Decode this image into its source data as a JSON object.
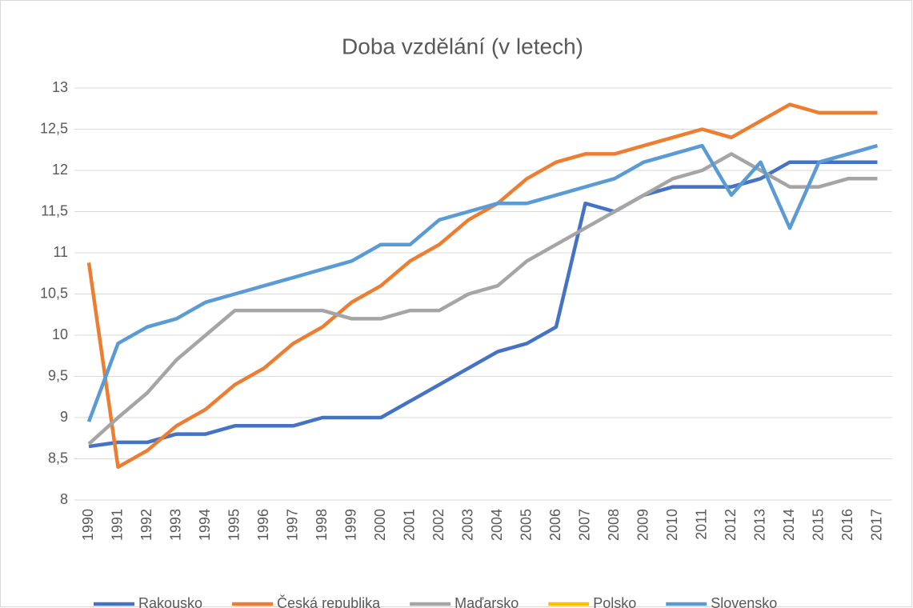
{
  "chart_data": {
    "type": "line",
    "title": "Doba vzdělání (v letech)",
    "categories": [
      "1990",
      "1991",
      "1992",
      "1993",
      "1994",
      "1995",
      "1996",
      "1997",
      "1998",
      "1999",
      "2000",
      "2001",
      "2002",
      "2003",
      "2004",
      "2005",
      "2006",
      "2007",
      "2008",
      "2009",
      "2010",
      "2011",
      "2012",
      "2013",
      "2014",
      "2015",
      "2016",
      "2017"
    ],
    "series": [
      {
        "name": "Rakousko",
        "color": "#4472c4",
        "values": [
          8.65,
          8.7,
          8.7,
          8.8,
          8.8,
          8.9,
          8.9,
          8.9,
          9.0,
          9.0,
          9.0,
          9.2,
          9.4,
          9.6,
          9.8,
          9.9,
          10.1,
          11.6,
          11.5,
          11.7,
          11.8,
          11.8,
          11.8,
          11.9,
          12.1,
          12.1,
          12.1,
          12.1
        ]
      },
      {
        "name": "Česká republika",
        "color": "#ed7d31",
        "values": [
          10.88,
          8.4,
          8.6,
          8.9,
          9.1,
          9.4,
          9.6,
          9.9,
          10.1,
          10.4,
          10.6,
          10.9,
          11.1,
          11.4,
          11.6,
          11.9,
          12.1,
          12.2,
          12.2,
          12.3,
          12.4,
          12.5,
          12.4,
          12.6,
          12.8,
          12.7,
          12.7,
          12.7
        ]
      },
      {
        "name": "Maďarsko",
        "color": "#a5a5a5",
        "values": [
          8.68,
          9.0,
          9.3,
          9.7,
          10.0,
          10.3,
          10.3,
          10.3,
          10.3,
          10.2,
          10.2,
          10.3,
          10.3,
          10.5,
          10.6,
          10.9,
          11.1,
          11.3,
          11.5,
          11.7,
          11.9,
          12.0,
          12.2,
          12.0,
          11.8,
          11.8,
          11.9,
          11.9
        ]
      },
      {
        "name": "Polsko",
        "color": "#ffc000",
        "values": [
          null,
          null,
          null,
          null,
          null,
          null,
          null,
          null,
          null,
          null,
          null,
          null,
          null,
          null,
          null,
          null,
          null,
          null,
          null,
          null,
          null,
          null,
          null,
          null,
          null,
          null,
          null,
          null
        ]
      },
      {
        "name": "Slovensko",
        "color": "#5b9bd5",
        "values": [
          8.95,
          9.9,
          10.1,
          10.2,
          10.4,
          10.5,
          10.6,
          10.7,
          10.8,
          10.9,
          11.1,
          11.1,
          11.4,
          11.5,
          11.6,
          11.6,
          11.7,
          11.8,
          11.9,
          12.1,
          12.2,
          12.3,
          11.7,
          12.1,
          11.3,
          12.1,
          12.2,
          12.3
        ]
      }
    ],
    "ylim": [
      8,
      13
    ],
    "yticks": [
      8,
      {
        "value": 8.5,
        "label": "8,5"
      },
      9,
      {
        "value": 9.5,
        "label": "9,5"
      },
      10,
      {
        "value": 10.5,
        "label": "10,5"
      },
      11,
      {
        "value": 11.5,
        "label": "11,5"
      },
      12,
      {
        "value": 12.5,
        "label": "12,5"
      },
      13
    ],
    "grid": true,
    "legend": "bottom"
  }
}
